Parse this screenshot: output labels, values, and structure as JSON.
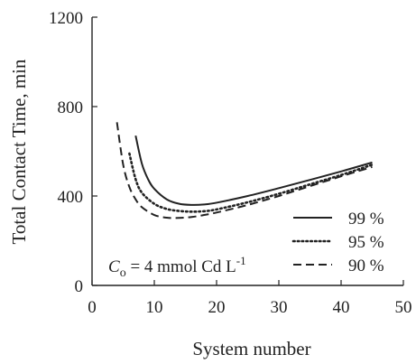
{
  "chart_data": {
    "type": "line",
    "title": "",
    "xlabel": "System number",
    "ylabel": "Total Contact Time, min",
    "xlim": [
      0,
      50
    ],
    "ylim": [
      0,
      1200
    ],
    "xticks": [
      0,
      10,
      20,
      30,
      40,
      50
    ],
    "yticks": [
      0,
      400,
      800,
      1200
    ],
    "grid": false,
    "legend_position": "lower-right",
    "annotation": {
      "var_main": "C",
      "var_sub": "o",
      "text": " = 4 mmol Cd L",
      "sup": "-1"
    },
    "series": [
      {
        "name": "99 %",
        "style": "solid",
        "x": [
          7,
          8,
          9,
          10,
          12,
          14,
          16,
          18,
          20,
          25,
          30,
          35,
          40,
          45
        ],
        "y": [
          670,
          545,
          475,
          432,
          385,
          365,
          360,
          362,
          370,
          400,
          435,
          472,
          510,
          550
        ]
      },
      {
        "name": "95 %",
        "style": "dotted",
        "x": [
          6,
          7,
          8,
          10,
          12,
          14,
          16,
          18,
          20,
          25,
          30,
          35,
          40,
          45
        ],
        "y": [
          590,
          475,
          415,
          365,
          342,
          333,
          330,
          332,
          340,
          372,
          410,
          452,
          494,
          540
        ]
      },
      {
        "name": "90 %",
        "style": "dashed",
        "x": [
          4,
          5,
          6,
          7,
          8,
          10,
          12,
          14,
          16,
          18,
          20,
          25,
          30,
          35,
          40,
          45
        ],
        "y": [
          730,
          540,
          440,
          385,
          350,
          315,
          303,
          302,
          306,
          315,
          326,
          360,
          400,
          444,
          488,
          530
        ]
      }
    ]
  }
}
